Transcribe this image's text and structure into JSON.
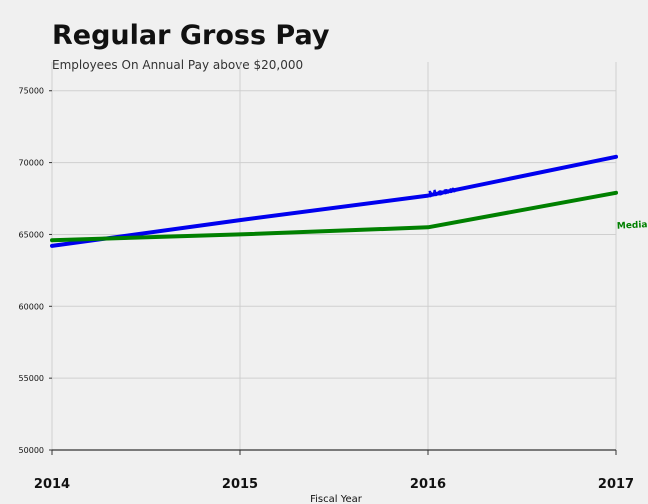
{
  "chart_data": {
    "type": "line",
    "title": "Regular Gross Pay",
    "subtitle": "Employees On Annual Pay above $20,000",
    "xlabel": "Fiscal Year",
    "ylabel": "",
    "x": [
      2014,
      2015,
      2016,
      2017
    ],
    "x_ticks": [
      "2014",
      "2015",
      "2016",
      "2017"
    ],
    "ylim": [
      50000,
      77000
    ],
    "y_ticks": [
      "50000",
      "55000",
      "60000",
      "65000",
      "70000",
      "75000"
    ],
    "grid": true,
    "series": [
      {
        "name": "Mean",
        "color": "#0000ee",
        "values": [
          64200,
          66000,
          67700,
          70400
        ]
      },
      {
        "name": "Median",
        "color": "#008000",
        "values": [
          64600,
          65000,
          65500,
          67900
        ]
      }
    ]
  }
}
